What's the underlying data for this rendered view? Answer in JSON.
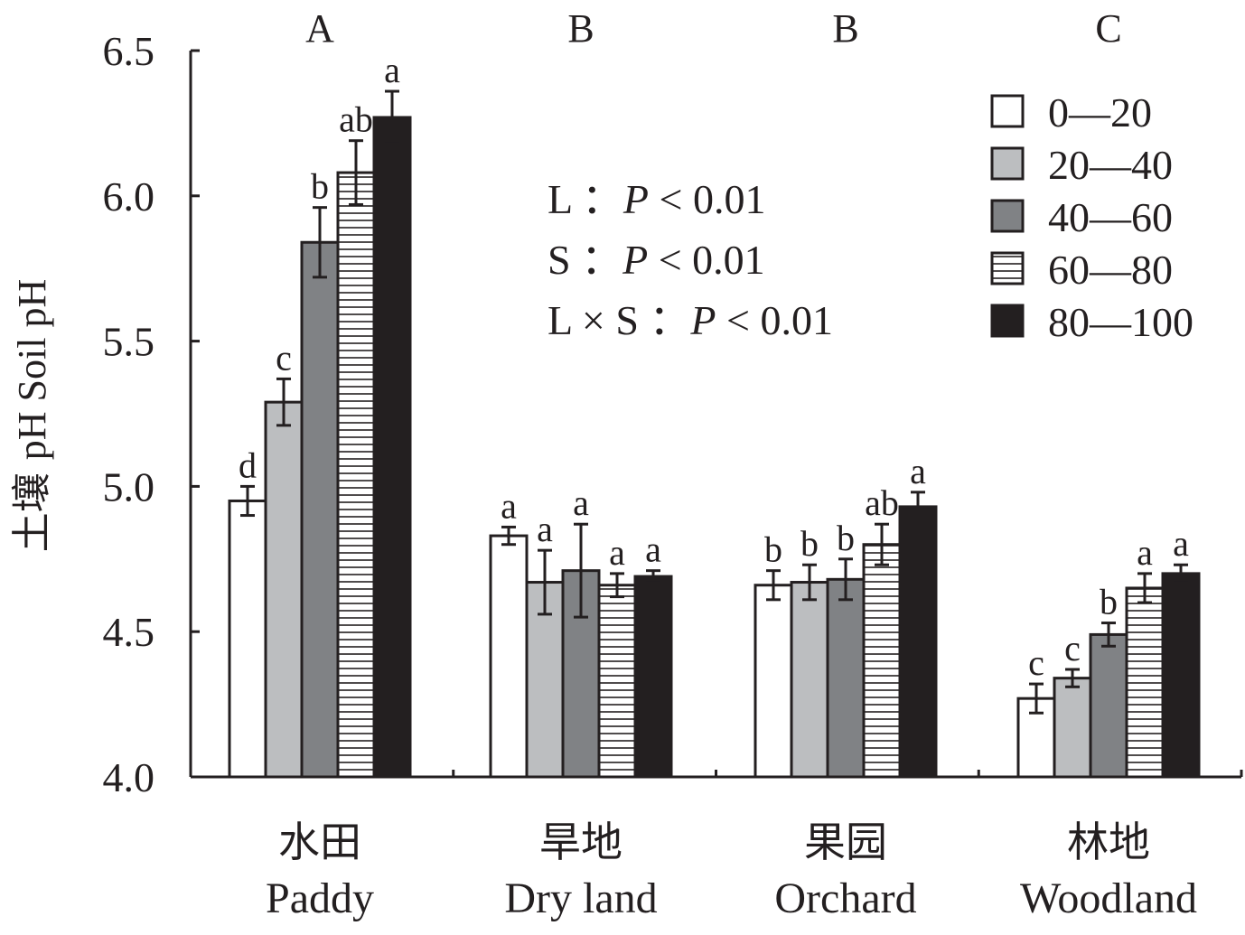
{
  "chart_data": {
    "type": "bar",
    "ylabel": "土壤 pH Soil pH",
    "ylim": [
      4.0,
      6.5
    ],
    "y_ticks": [
      "4.0",
      "4.5",
      "5.0",
      "5.5",
      "6.0",
      "6.5"
    ],
    "categories": [
      {
        "zh": "水田",
        "en": "Paddy",
        "group_letter": "A"
      },
      {
        "zh": "旱地",
        "en": "Dry land",
        "group_letter": "B"
      },
      {
        "zh": "果园",
        "en": "Orchard",
        "group_letter": "B"
      },
      {
        "zh": "林地",
        "en": "Woodland",
        "group_letter": "C"
      }
    ],
    "series": [
      {
        "name": "0—20",
        "color": "#ffffff",
        "pattern": "solid",
        "values": [
          4.95,
          4.83,
          4.66,
          4.27
        ],
        "errors": [
          0.05,
          0.03,
          0.05,
          0.05
        ],
        "letters": [
          "d",
          "a",
          "b",
          "c"
        ]
      },
      {
        "name": "20—40",
        "color": "#bcbec0",
        "pattern": "solid",
        "values": [
          5.29,
          4.67,
          4.67,
          4.34
        ],
        "errors": [
          0.08,
          0.11,
          0.06,
          0.03
        ],
        "letters": [
          "c",
          "a",
          "b",
          "c"
        ]
      },
      {
        "name": "40—60",
        "color": "#808285",
        "pattern": "solid",
        "values": [
          5.84,
          4.71,
          4.68,
          4.49
        ],
        "errors": [
          0.12,
          0.16,
          0.07,
          0.04
        ],
        "letters": [
          "b",
          "a",
          "b",
          "b"
        ]
      },
      {
        "name": "60—80",
        "color": "#ffffff",
        "pattern": "hstripes",
        "values": [
          6.08,
          4.66,
          4.8,
          4.65
        ],
        "errors": [
          0.11,
          0.04,
          0.07,
          0.05
        ],
        "letters": [
          "ab",
          "a",
          "ab",
          "a"
        ]
      },
      {
        "name": "80—100",
        "color": "#231f20",
        "pattern": "solid",
        "values": [
          6.27,
          4.69,
          4.93,
          4.7
        ],
        "errors": [
          0.09,
          0.02,
          0.05,
          0.03
        ],
        "letters": [
          "a",
          "a",
          "a",
          "a"
        ]
      }
    ],
    "annotations": [
      {
        "label": "L",
        "sep": "：",
        "p": "P",
        "rel": " < 0.01"
      },
      {
        "label": "S",
        "sep": "：",
        "p": "P",
        "rel": " < 0.01"
      },
      {
        "label": "L × S",
        "sep": "：",
        "p": "P",
        "rel": " < 0.01"
      }
    ],
    "legend_position": "top-right",
    "grid": false
  }
}
